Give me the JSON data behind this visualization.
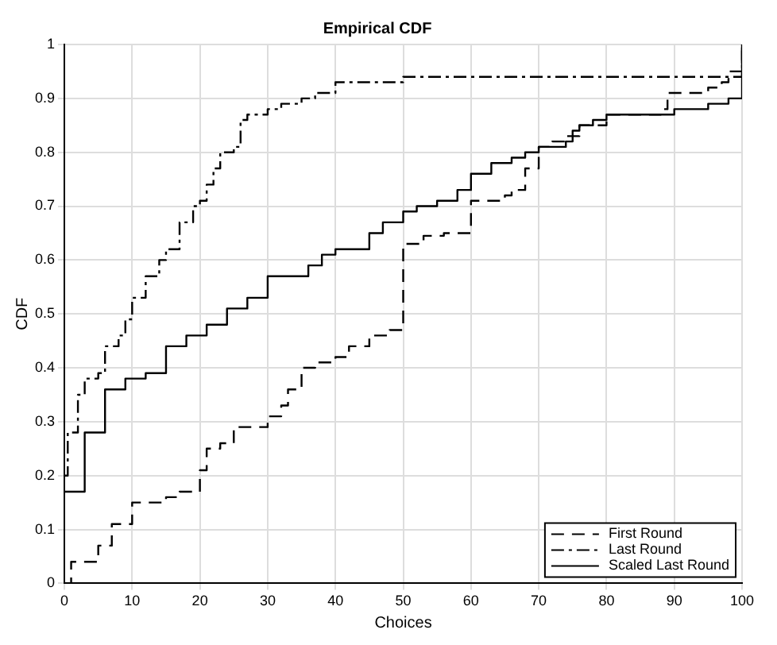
{
  "chart_data": {
    "type": "step",
    "title": "Empirical CDF",
    "xlabel": "Choices",
    "ylabel": "CDF",
    "xlim": [
      0,
      100
    ],
    "ylim": [
      0,
      1
    ],
    "xticks": [
      0,
      10,
      20,
      30,
      40,
      50,
      60,
      70,
      80,
      90,
      100
    ],
    "yticks": [
      0,
      0.1,
      0.2,
      0.3,
      0.4,
      0.5,
      0.6,
      0.7,
      0.8,
      0.9,
      1
    ],
    "grid": true,
    "legend": "bottom right",
    "series": [
      {
        "name": "First Round",
        "color": "#000000",
        "line_style": "dashed",
        "x": [
          0,
          1,
          5,
          7,
          10,
          15,
          17,
          20,
          21,
          23,
          25,
          30,
          32,
          33,
          35,
          37,
          40,
          42,
          45,
          48,
          50,
          53,
          56,
          60,
          65,
          66,
          68,
          70,
          72,
          74,
          76,
          80,
          88,
          89,
          95,
          97,
          98,
          100
        ],
        "values": [
          0,
          0.04,
          0.07,
          0.11,
          0.15,
          0.16,
          0.17,
          0.21,
          0.25,
          0.26,
          0.29,
          0.31,
          0.33,
          0.36,
          0.4,
          0.41,
          0.42,
          0.44,
          0.46,
          0.47,
          0.63,
          0.645,
          0.65,
          0.71,
          0.72,
          0.73,
          0.77,
          0.81,
          0.82,
          0.83,
          0.85,
          0.87,
          0.88,
          0.91,
          0.92,
          0.93,
          0.95,
          1
        ]
      },
      {
        "name": "Last Round",
        "color": "#000000",
        "line_style": "dashdot",
        "x": [
          0,
          0.5,
          2,
          3,
          5,
          6,
          8,
          9,
          10,
          12,
          14,
          15,
          17,
          19,
          20,
          21,
          22,
          23,
          25,
          26,
          27,
          30,
          32,
          35,
          37,
          40,
          50,
          100
        ],
        "values": [
          0.2,
          0.28,
          0.35,
          0.38,
          0.39,
          0.44,
          0.46,
          0.49,
          0.53,
          0.57,
          0.6,
          0.62,
          0.67,
          0.7,
          0.71,
          0.74,
          0.77,
          0.8,
          0.81,
          0.86,
          0.87,
          0.88,
          0.89,
          0.9,
          0.91,
          0.93,
          0.94,
          1
        ]
      },
      {
        "name": "Scaled Last Round",
        "color": "#000000",
        "line_style": "solid",
        "x": [
          0,
          3,
          6,
          9,
          12,
          15,
          18,
          21,
          24,
          27,
          30,
          36,
          38,
          40,
          45,
          47,
          50,
          52,
          55,
          58,
          60,
          63,
          66,
          68,
          70,
          74,
          75,
          76,
          78,
          80,
          90,
          95,
          98,
          100
        ],
        "values": [
          0.17,
          0.28,
          0.36,
          0.38,
          0.39,
          0.44,
          0.46,
          0.48,
          0.51,
          0.53,
          0.57,
          0.59,
          0.61,
          0.62,
          0.65,
          0.67,
          0.69,
          0.7,
          0.71,
          0.73,
          0.76,
          0.78,
          0.79,
          0.8,
          0.81,
          0.82,
          0.84,
          0.85,
          0.86,
          0.87,
          0.88,
          0.89,
          0.9,
          1
        ]
      }
    ]
  }
}
